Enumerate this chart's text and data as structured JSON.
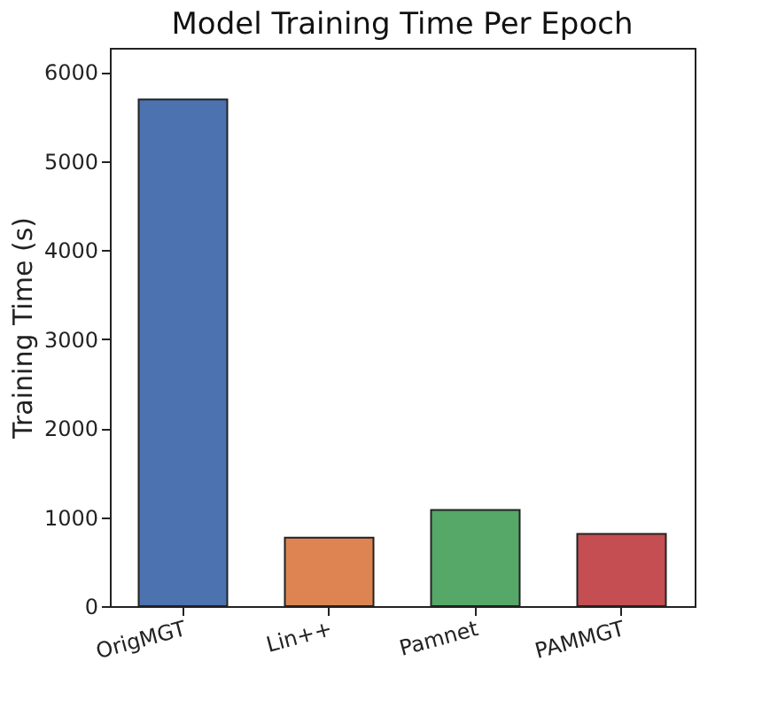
{
  "chart_data": {
    "type": "bar",
    "title": "Model Training Time Per Epoch",
    "ylabel": "Training Time (s)",
    "categories": [
      "OrigMGT",
      "Lin++",
      "Pamnet",
      "PAMMGT"
    ],
    "values": [
      5690,
      770,
      1080,
      810
    ],
    "colors": [
      "#4c72b0",
      "#dd8452",
      "#55a868",
      "#c44e52"
    ],
    "ylim": [
      0,
      6270
    ],
    "yticks": [
      0,
      1000,
      2000,
      3000,
      4000,
      5000,
      6000
    ],
    "grid": false
  }
}
